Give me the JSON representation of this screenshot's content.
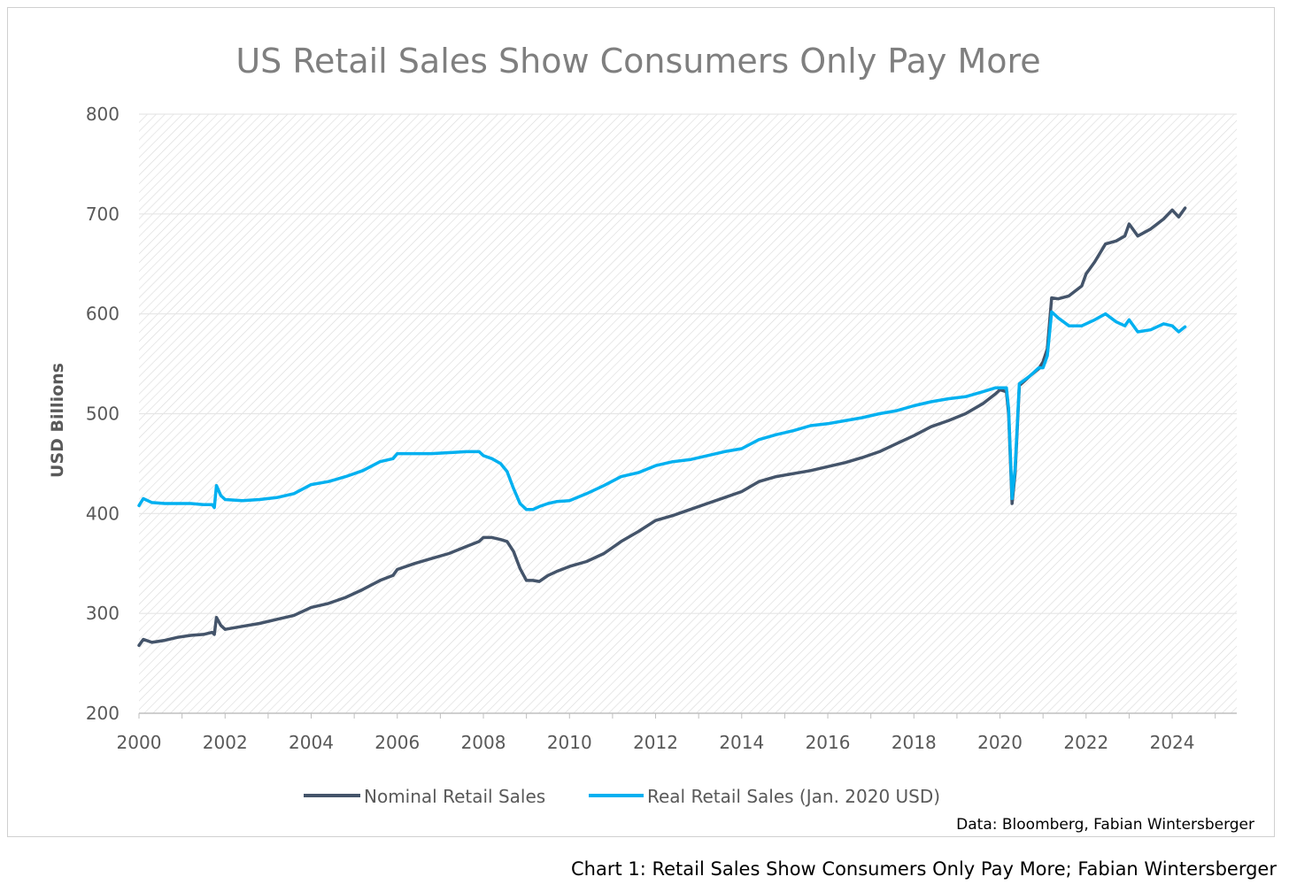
{
  "caption": "Chart 1: Retail Sales Show Consumers Only Pay More; Fabian Wintersberger",
  "chart_data": {
    "type": "line",
    "title": "US Retail Sales Show Consumers Only Pay More",
    "ylabel": "USD Billions",
    "xlabel": "",
    "source": "Data: Bloomberg, Fabian Wintersberger",
    "xlim": [
      2000,
      2025.5
    ],
    "ylim": [
      200,
      800
    ],
    "xticks": [
      "2000",
      "2002",
      "2004",
      "2006",
      "2008",
      "2010",
      "2012",
      "2014",
      "2016",
      "2018",
      "2020",
      "2022",
      "2024"
    ],
    "yticks": [
      "200",
      "300",
      "400",
      "500",
      "600",
      "700",
      "800"
    ],
    "grid": "horizontal",
    "legend_position": "bottom",
    "colors": {
      "nominal": "#44546a",
      "real": "#00b0f0"
    },
    "series": [
      {
        "name": "Nominal Retail Sales",
        "color": "#44546a",
        "points": [
          [
            2000.0,
            268
          ],
          [
            2000.1,
            274
          ],
          [
            2000.3,
            271
          ],
          [
            2000.6,
            273
          ],
          [
            2000.9,
            276
          ],
          [
            2001.2,
            278
          ],
          [
            2001.5,
            279
          ],
          [
            2001.7,
            281
          ],
          [
            2001.75,
            279
          ],
          [
            2001.8,
            296
          ],
          [
            2001.9,
            288
          ],
          [
            2002.0,
            284
          ],
          [
            2002.4,
            287
          ],
          [
            2002.8,
            290
          ],
          [
            2003.2,
            294
          ],
          [
            2003.6,
            298
          ],
          [
            2004.0,
            306
          ],
          [
            2004.4,
            310
          ],
          [
            2004.8,
            316
          ],
          [
            2005.2,
            324
          ],
          [
            2005.6,
            333
          ],
          [
            2005.9,
            338
          ],
          [
            2006.0,
            344
          ],
          [
            2006.4,
            350
          ],
          [
            2006.8,
            355
          ],
          [
            2007.2,
            360
          ],
          [
            2007.6,
            367
          ],
          [
            2007.9,
            372
          ],
          [
            2008.0,
            376
          ],
          [
            2008.2,
            376
          ],
          [
            2008.4,
            374
          ],
          [
            2008.55,
            372
          ],
          [
            2008.7,
            362
          ],
          [
            2008.85,
            345
          ],
          [
            2009.0,
            333
          ],
          [
            2009.15,
            333
          ],
          [
            2009.3,
            332
          ],
          [
            2009.5,
            338
          ],
          [
            2009.7,
            342
          ],
          [
            2010.0,
            347
          ],
          [
            2010.4,
            352
          ],
          [
            2010.8,
            360
          ],
          [
            2011.2,
            372
          ],
          [
            2011.6,
            382
          ],
          [
            2012.0,
            393
          ],
          [
            2012.4,
            398
          ],
          [
            2012.8,
            404
          ],
          [
            2013.2,
            410
          ],
          [
            2013.6,
            416
          ],
          [
            2014.0,
            422
          ],
          [
            2014.4,
            432
          ],
          [
            2014.8,
            437
          ],
          [
            2015.2,
            440
          ],
          [
            2015.6,
            443
          ],
          [
            2016.0,
            447
          ],
          [
            2016.4,
            451
          ],
          [
            2016.8,
            456
          ],
          [
            2017.2,
            462
          ],
          [
            2017.6,
            470
          ],
          [
            2018.0,
            478
          ],
          [
            2018.4,
            487
          ],
          [
            2018.8,
            493
          ],
          [
            2019.2,
            500
          ],
          [
            2019.6,
            510
          ],
          [
            2019.9,
            520
          ],
          [
            2020.0,
            524
          ],
          [
            2020.15,
            522
          ],
          [
            2020.2,
            500
          ],
          [
            2020.28,
            410
          ],
          [
            2020.35,
            440
          ],
          [
            2020.45,
            528
          ],
          [
            2020.7,
            538
          ],
          [
            2020.9,
            545
          ],
          [
            2021.0,
            552
          ],
          [
            2021.1,
            565
          ],
          [
            2021.2,
            616
          ],
          [
            2021.35,
            615
          ],
          [
            2021.6,
            618
          ],
          [
            2021.9,
            628
          ],
          [
            2022.0,
            640
          ],
          [
            2022.2,
            652
          ],
          [
            2022.45,
            670
          ],
          [
            2022.7,
            673
          ],
          [
            2022.9,
            678
          ],
          [
            2023.0,
            690
          ],
          [
            2023.2,
            678
          ],
          [
            2023.5,
            685
          ],
          [
            2023.8,
            695
          ],
          [
            2024.0,
            704
          ],
          [
            2024.15,
            697
          ],
          [
            2024.3,
            706
          ]
        ]
      },
      {
        "name": "Real Retail Sales (Jan. 2020 USD)",
        "color": "#00b0f0",
        "points": [
          [
            2000.0,
            408
          ],
          [
            2000.1,
            415
          ],
          [
            2000.3,
            411
          ],
          [
            2000.6,
            410
          ],
          [
            2000.9,
            410
          ],
          [
            2001.2,
            410
          ],
          [
            2001.5,
            409
          ],
          [
            2001.7,
            409
          ],
          [
            2001.75,
            406
          ],
          [
            2001.8,
            428
          ],
          [
            2001.9,
            418
          ],
          [
            2002.0,
            414
          ],
          [
            2002.4,
            413
          ],
          [
            2002.8,
            414
          ],
          [
            2003.2,
            416
          ],
          [
            2003.6,
            420
          ],
          [
            2004.0,
            429
          ],
          [
            2004.4,
            432
          ],
          [
            2004.8,
            437
          ],
          [
            2005.2,
            443
          ],
          [
            2005.6,
            452
          ],
          [
            2005.9,
            455
          ],
          [
            2006.0,
            460
          ],
          [
            2006.4,
            460
          ],
          [
            2006.8,
            460
          ],
          [
            2007.2,
            461
          ],
          [
            2007.6,
            462
          ],
          [
            2007.9,
            462
          ],
          [
            2008.0,
            458
          ],
          [
            2008.2,
            455
          ],
          [
            2008.4,
            450
          ],
          [
            2008.55,
            442
          ],
          [
            2008.7,
            425
          ],
          [
            2008.85,
            410
          ],
          [
            2009.0,
            404
          ],
          [
            2009.15,
            404
          ],
          [
            2009.3,
            407
          ],
          [
            2009.5,
            410
          ],
          [
            2009.7,
            412
          ],
          [
            2010.0,
            413
          ],
          [
            2010.4,
            420
          ],
          [
            2010.8,
            428
          ],
          [
            2011.2,
            437
          ],
          [
            2011.6,
            441
          ],
          [
            2012.0,
            448
          ],
          [
            2012.4,
            452
          ],
          [
            2012.8,
            454
          ],
          [
            2013.2,
            458
          ],
          [
            2013.6,
            462
          ],
          [
            2014.0,
            465
          ],
          [
            2014.4,
            474
          ],
          [
            2014.8,
            479
          ],
          [
            2015.2,
            483
          ],
          [
            2015.6,
            488
          ],
          [
            2016.0,
            490
          ],
          [
            2016.4,
            493
          ],
          [
            2016.8,
            496
          ],
          [
            2017.2,
            500
          ],
          [
            2017.6,
            503
          ],
          [
            2018.0,
            508
          ],
          [
            2018.4,
            512
          ],
          [
            2018.8,
            515
          ],
          [
            2019.2,
            517
          ],
          [
            2019.6,
            522
          ],
          [
            2019.9,
            526
          ],
          [
            2020.0,
            526
          ],
          [
            2020.15,
            526
          ],
          [
            2020.2,
            505
          ],
          [
            2020.28,
            415
          ],
          [
            2020.35,
            445
          ],
          [
            2020.45,
            530
          ],
          [
            2020.7,
            538
          ],
          [
            2020.9,
            546
          ],
          [
            2021.0,
            546
          ],
          [
            2021.1,
            558
          ],
          [
            2021.2,
            602
          ],
          [
            2021.35,
            596
          ],
          [
            2021.6,
            588
          ],
          [
            2021.9,
            588
          ],
          [
            2022.0,
            590
          ],
          [
            2022.2,
            594
          ],
          [
            2022.45,
            600
          ],
          [
            2022.7,
            592
          ],
          [
            2022.9,
            588
          ],
          [
            2023.0,
            594
          ],
          [
            2023.2,
            582
          ],
          [
            2023.5,
            584
          ],
          [
            2023.8,
            590
          ],
          [
            2024.0,
            588
          ],
          [
            2024.15,
            582
          ],
          [
            2024.3,
            587
          ]
        ]
      }
    ]
  }
}
